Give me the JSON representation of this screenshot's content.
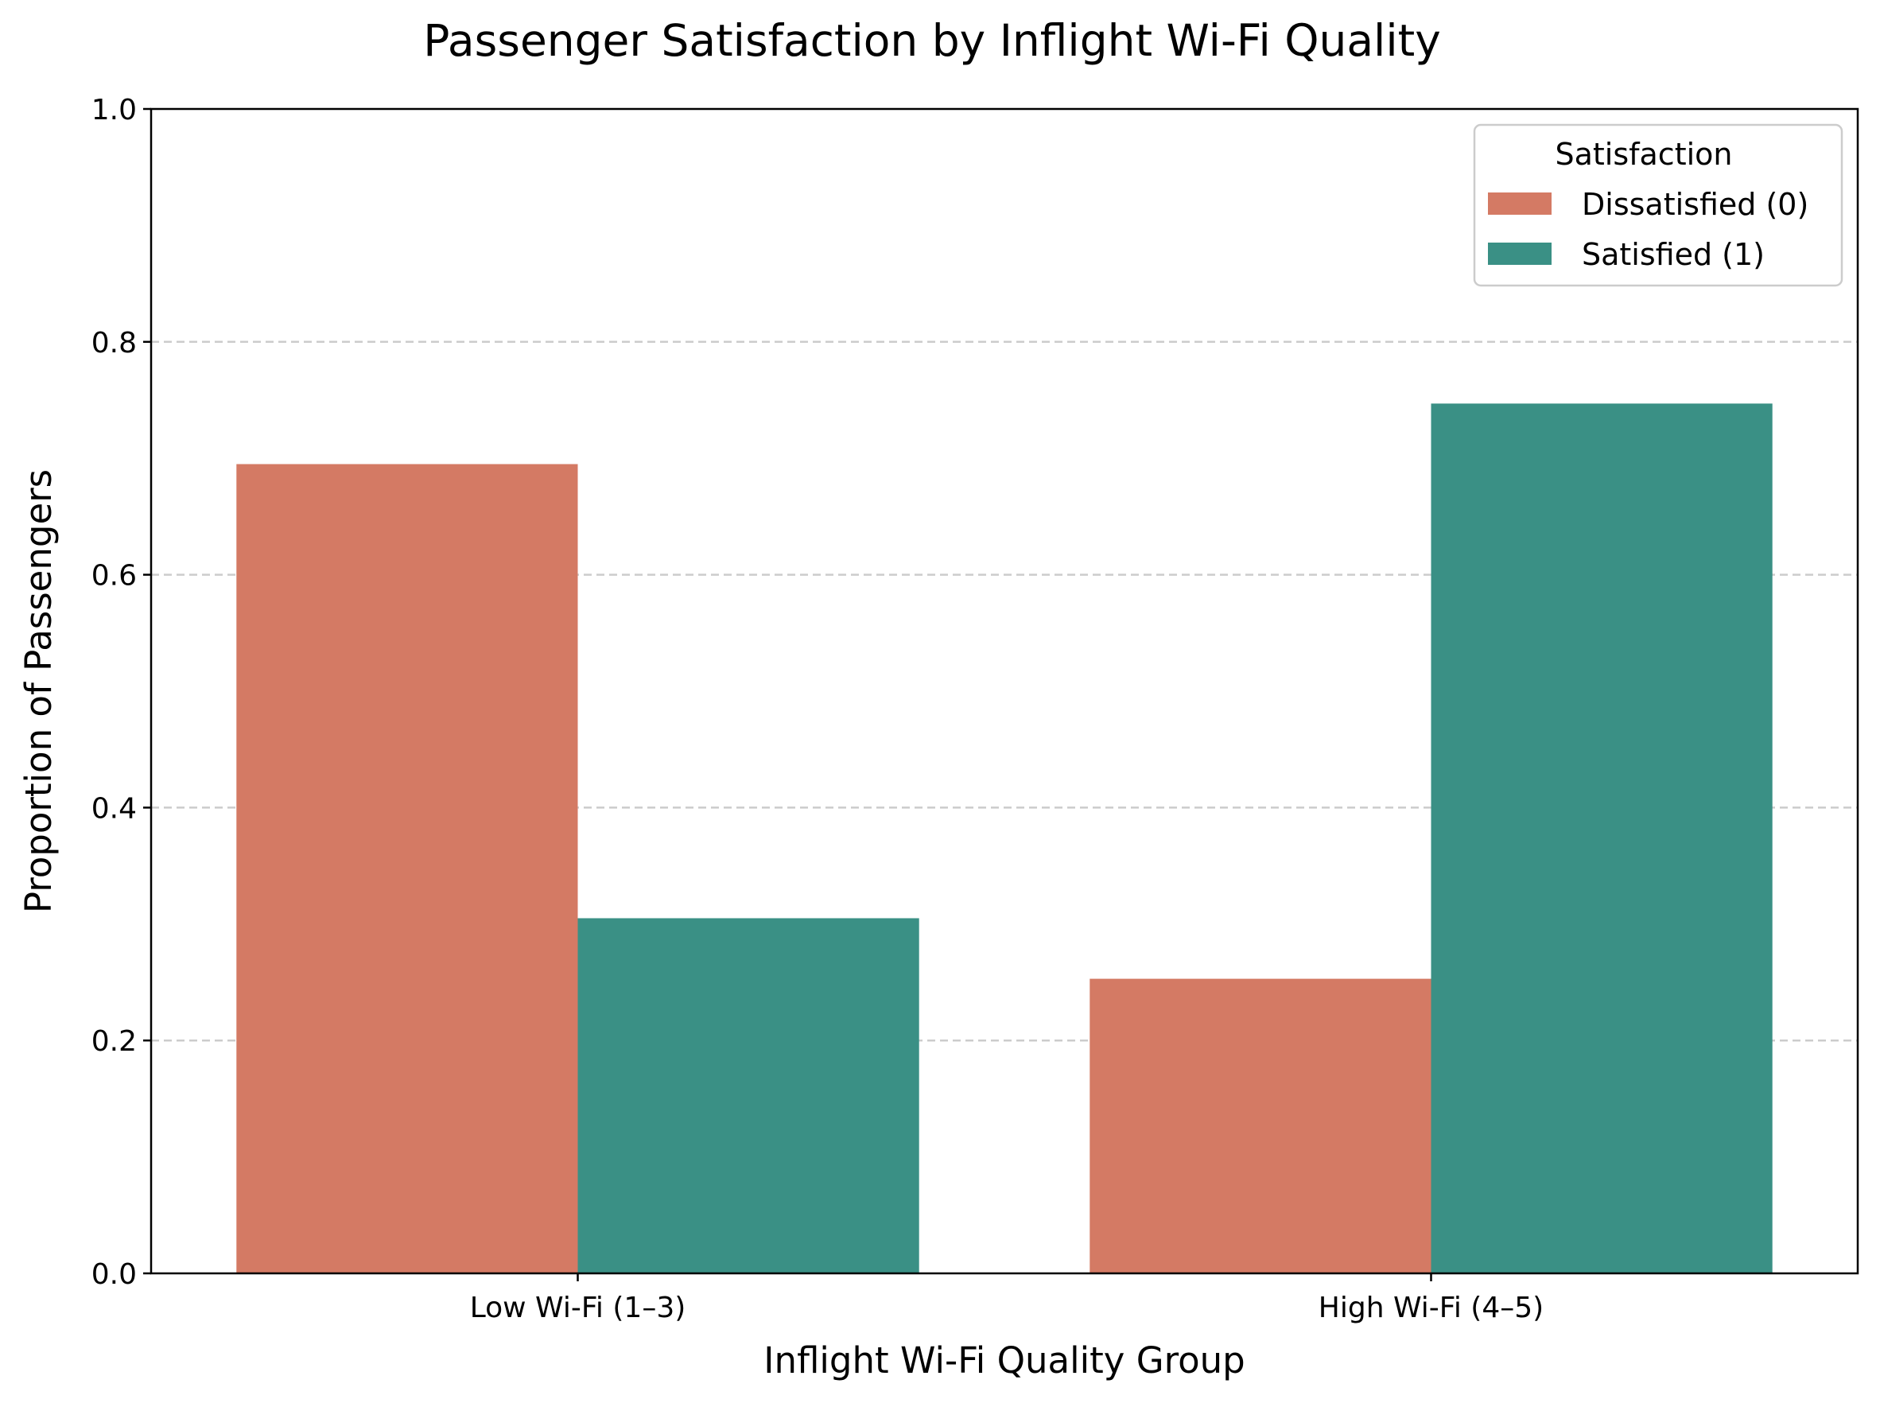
{
  "chart_data": {
    "type": "bar",
    "title": "Passenger Satisfaction by Inflight Wi-Fi Quality",
    "xlabel": "Inflight Wi-Fi Quality Group",
    "ylabel": "Proportion of Passengers",
    "categories": [
      "Low Wi-Fi (1–3)",
      "High Wi-Fi (4–5)"
    ],
    "series": [
      {
        "name": "Dissatisfied (0)",
        "values": [
          0.695,
          0.253
        ],
        "color": "#d47a64"
      },
      {
        "name": "Satisfied (1)",
        "values": [
          0.305,
          0.747
        ],
        "color": "#3a9085"
      }
    ],
    "ylim": [
      0,
      1.0
    ],
    "yticks": [
      "0.0",
      "0.2",
      "0.4",
      "0.6",
      "0.8",
      "1.0"
    ],
    "grid": "y-dashed",
    "legend": {
      "title": "Satisfaction",
      "placement": "top-right"
    }
  }
}
